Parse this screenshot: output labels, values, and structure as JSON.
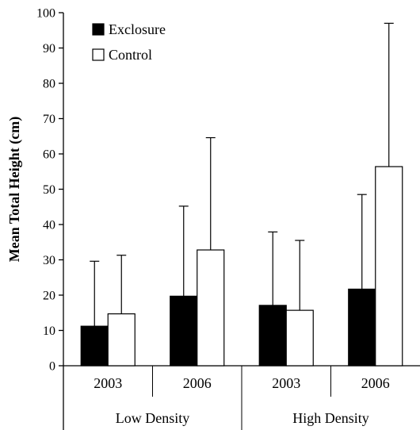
{
  "chart_data": {
    "type": "bar",
    "ylabel": "Mean Total Height (cm)",
    "ylim": [
      0,
      100
    ],
    "yticks": [
      0,
      10,
      20,
      30,
      40,
      50,
      60,
      70,
      80,
      90,
      100
    ],
    "groups": [
      {
        "label": "Low Density",
        "categories": [
          "2003",
          "2006"
        ]
      },
      {
        "label": "High Density",
        "categories": [
          "2003",
          "2006"
        ]
      }
    ],
    "categories": [
      "2003",
      "2006",
      "2003",
      "2006"
    ],
    "series": [
      {
        "name": "Exclosure",
        "color": "#000000",
        "values": [
          11.2,
          19.7,
          17.1,
          21.7
        ],
        "error_upper": [
          29.6,
          45.2,
          37.9,
          48.5
        ]
      },
      {
        "name": "Control",
        "color": "#ffffff",
        "values": [
          14.7,
          32.8,
          15.7,
          56.4
        ],
        "error_upper": [
          31.3,
          64.6,
          35.5,
          97.0
        ]
      }
    ],
    "legend_position": "top-left",
    "grid": false
  }
}
